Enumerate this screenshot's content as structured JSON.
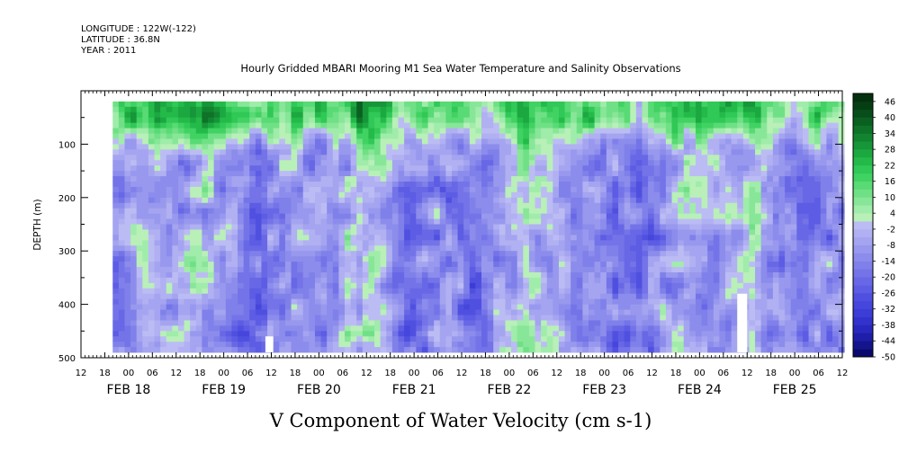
{
  "header": {
    "longitude": "LONGITUDE : 122W(-122)",
    "latitude": "LATITUDE : 36.8N",
    "year": "YEAR : 2011"
  },
  "chart_data": {
    "type": "heatmap",
    "title": "Hourly Gridded MBARI Mooring M1 Sea Water Temperature and Salinity Observations",
    "variable_label": "V Component of Water Velocity (cm s-1)",
    "ylabel": "DEPTH (m)",
    "ylim": [
      500,
      0
    ],
    "y_reversed": true,
    "y_ticks": [
      100,
      200,
      300,
      400,
      500
    ],
    "x_hour_ticks": [
      "12",
      "18",
      "00",
      "06",
      "12",
      "18",
      "00",
      "06",
      "12",
      "18",
      "00",
      "06",
      "12",
      "18",
      "00",
      "06",
      "12",
      "18",
      "00",
      "06",
      "12",
      "18",
      "00",
      "06",
      "12",
      "18",
      "00",
      "06",
      "12",
      "18",
      "00",
      "06",
      "12"
    ],
    "x_date_labels": [
      {
        "label": "FEB 18",
        "hour": 0
      },
      {
        "label": "FEB 19",
        "hour": 24
      },
      {
        "label": "FEB 20",
        "hour": 48
      },
      {
        "label": "FEB 21",
        "hour": 72
      },
      {
        "label": "FEB 22",
        "hour": 96
      },
      {
        "label": "FEB 23",
        "hour": 120
      },
      {
        "label": "FEB 24",
        "hour": 144
      },
      {
        "label": "FEB 25",
        "hour": 168
      }
    ],
    "x_range_hours": [
      -12,
      180
    ],
    "data_range_hours": [
      -4,
      180
    ],
    "depth_range_m": [
      20,
      490
    ],
    "colorbar": {
      "labels": [
        "46",
        "40",
        "34",
        "28",
        "22",
        "16",
        "10",
        "4",
        "-2",
        "-8",
        "-14",
        "-20",
        "-26",
        "-32",
        "-38",
        "-44",
        "-50"
      ],
      "levels": [
        -50,
        -47,
        -44,
        -41,
        -38,
        -35,
        -32,
        -29,
        -26,
        -23,
        -20,
        -17,
        -14,
        -11,
        -8,
        -5,
        -2,
        1,
        4,
        7,
        10,
        13,
        16,
        19,
        22,
        25,
        28,
        31,
        34,
        37,
        40,
        43,
        46,
        49
      ],
      "colors": [
        "#0a0a6e",
        "#14148c",
        "#1e1ea8",
        "#2828be",
        "#3232cc",
        "#3c3cd6",
        "#4646dc",
        "#5050e0",
        "#5c5ce4",
        "#6868e6",
        "#7474e8",
        "#8080ea",
        "#8c8cec",
        "#9898ee",
        "#a4a4f0",
        "#b0b0f2",
        "#bcbcf4",
        "#b8f0b8",
        "#a0ecaa",
        "#88e698",
        "#70e086",
        "#58da74",
        "#40d262",
        "#30c856",
        "#24ba4a",
        "#1ca840",
        "#169638",
        "#128430",
        "#0e7228",
        "#0a6020",
        "#084e1a",
        "#063e14",
        "#04300e"
      ]
    },
    "profile_note": "surface layer (20-100 m) positive/green; deeper water mostly -5 to -20 with scattered positive patches"
  }
}
